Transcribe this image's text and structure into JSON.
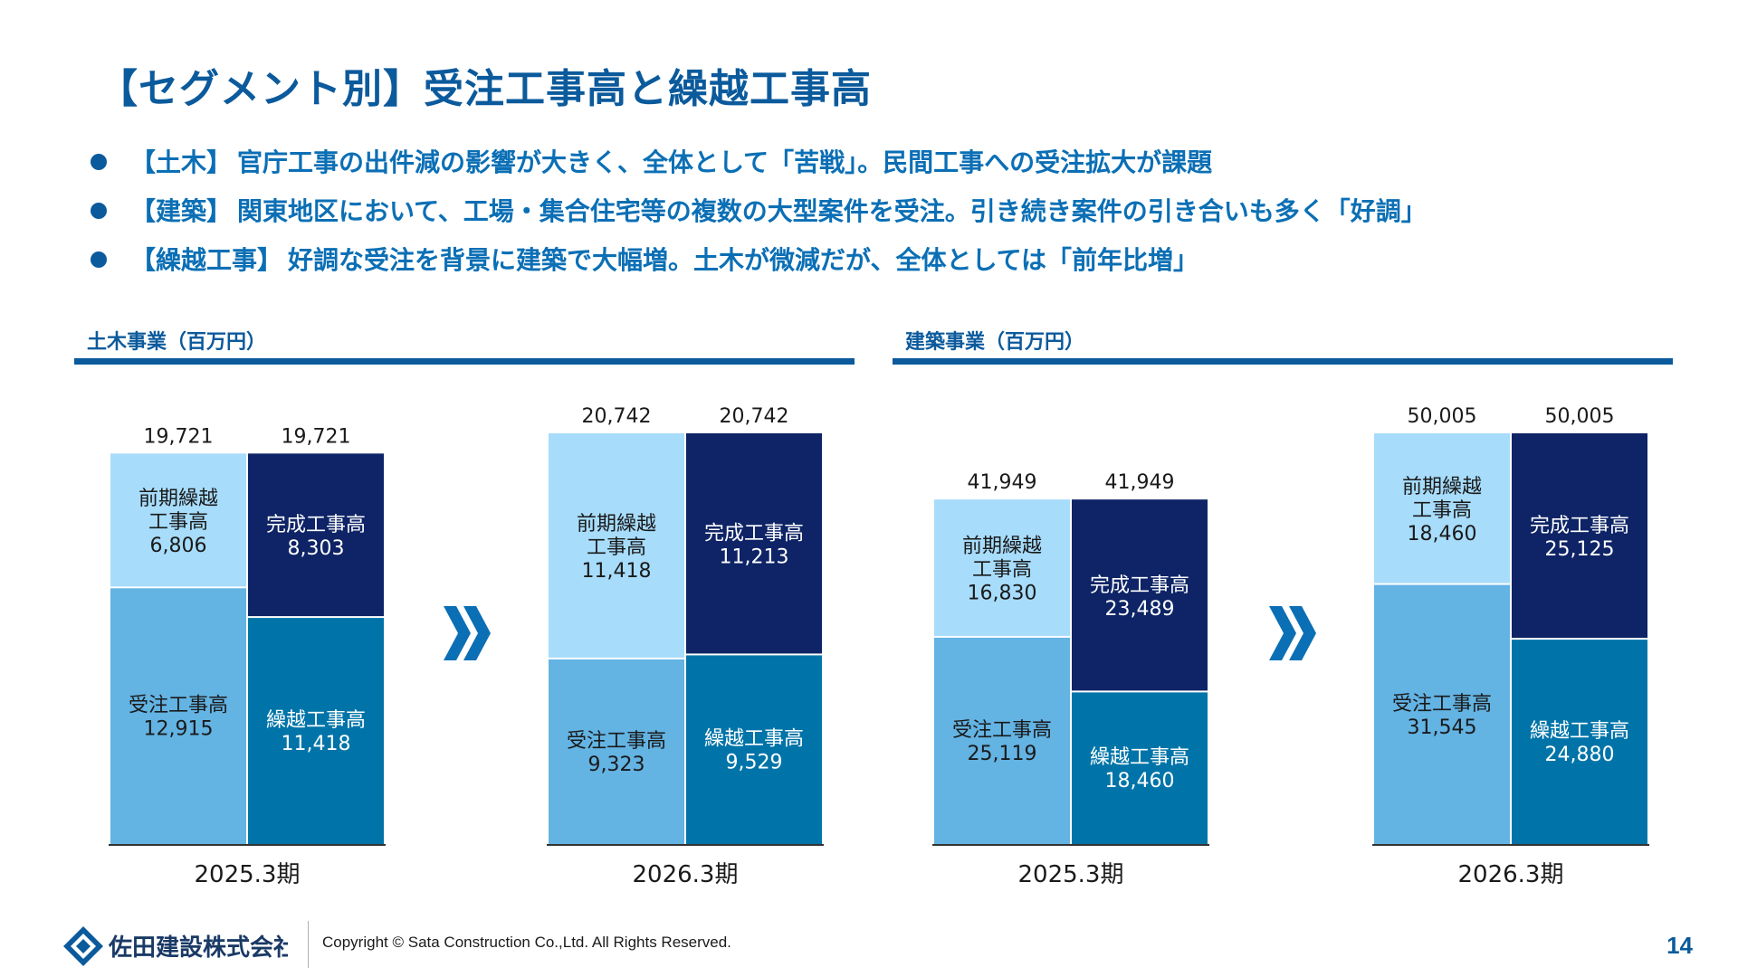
{
  "title": "【セグメント別】受注工事高と繰越工事高",
  "bullets": [
    {
      "tag": "【土木】",
      "text": "官庁工事の出件減の影響が大きく、全体として「苦戦」。民間工事への受注拡大が課題"
    },
    {
      "tag": "【建築】",
      "text": "関東地区において、工場・集合住宅等の複数の大型案件を受注。引き続き案件の引き合いも多く「好調」"
    },
    {
      "tag": "【繰越工事】",
      "text": "好調な受注を背景に建築で大幅増。土木が微減だが、全体としては「前年比増」"
    }
  ],
  "segments": [
    {
      "title": "土木事業（百万円）"
    },
    {
      "title": "建築事業（百万円）"
    }
  ],
  "colors": {
    "brand": "#0b5a9c",
    "prior_carry": "#a7dcfb",
    "orders": "#63b3e3",
    "completed": "#0e2466",
    "carry_forward": "#0074a8",
    "arrow": "#0b6fb5"
  },
  "chart_data": [
    {
      "type": "bar",
      "segment": "土木事業（百万円）",
      "ylim": [
        0,
        20742
      ],
      "periods": [
        {
          "label": "2025.3期",
          "left_total": "19,721",
          "right_total": "19,721",
          "left": [
            {
              "name": "受注工事高",
              "value": 12915,
              "label": "12,915"
            },
            {
              "name": "前期繰越工事高",
              "value": 6806,
              "label": "6,806"
            }
          ],
          "right": [
            {
              "name": "繰越工事高",
              "value": 11418,
              "label": "11,418"
            },
            {
              "name": "完成工事高",
              "value": 8303,
              "label": "8,303"
            }
          ]
        },
        {
          "label": "2026.3期",
          "left_total": "20,742",
          "right_total": "20,742",
          "left": [
            {
              "name": "受注工事高",
              "value": 9323,
              "label": "9,323"
            },
            {
              "name": "前期繰越工事高",
              "value": 11418,
              "label": "11,418"
            }
          ],
          "right": [
            {
              "name": "繰越工事高",
              "value": 9529,
              "label": "9,529"
            },
            {
              "name": "完成工事高",
              "value": 11213,
              "label": "11,213"
            }
          ]
        }
      ]
    },
    {
      "type": "bar",
      "segment": "建築事業（百万円）",
      "ylim": [
        0,
        50005
      ],
      "periods": [
        {
          "label": "2025.3期",
          "left_total": "41,949",
          "right_total": "41,949",
          "left": [
            {
              "name": "受注工事高",
              "value": 25119,
              "label": "25,119"
            },
            {
              "name": "前期繰越工事高",
              "value": 16830,
              "label": "16,830"
            }
          ],
          "right": [
            {
              "name": "繰越工事高",
              "value": 18460,
              "label": "18,460"
            },
            {
              "name": "完成工事高",
              "value": 23489,
              "label": "23,489"
            }
          ]
        },
        {
          "label": "2026.3期",
          "left_total": "50,005",
          "right_total": "50,005",
          "left": [
            {
              "name": "受注工事高",
              "value": 31545,
              "label": "31,545"
            },
            {
              "name": "前期繰越工事高",
              "value": 18460,
              "label": "18,460"
            }
          ],
          "right": [
            {
              "name": "繰越工事高",
              "value": 24880,
              "label": "24,880"
            },
            {
              "name": "完成工事高",
              "value": 25125,
              "label": "25,125"
            }
          ]
        }
      ]
    }
  ],
  "footer": {
    "company": "佐田建設株式会社",
    "copyright": "Copyright © Sata Construction Co.,Ltd. All Rights Reserved.",
    "page": "14"
  }
}
